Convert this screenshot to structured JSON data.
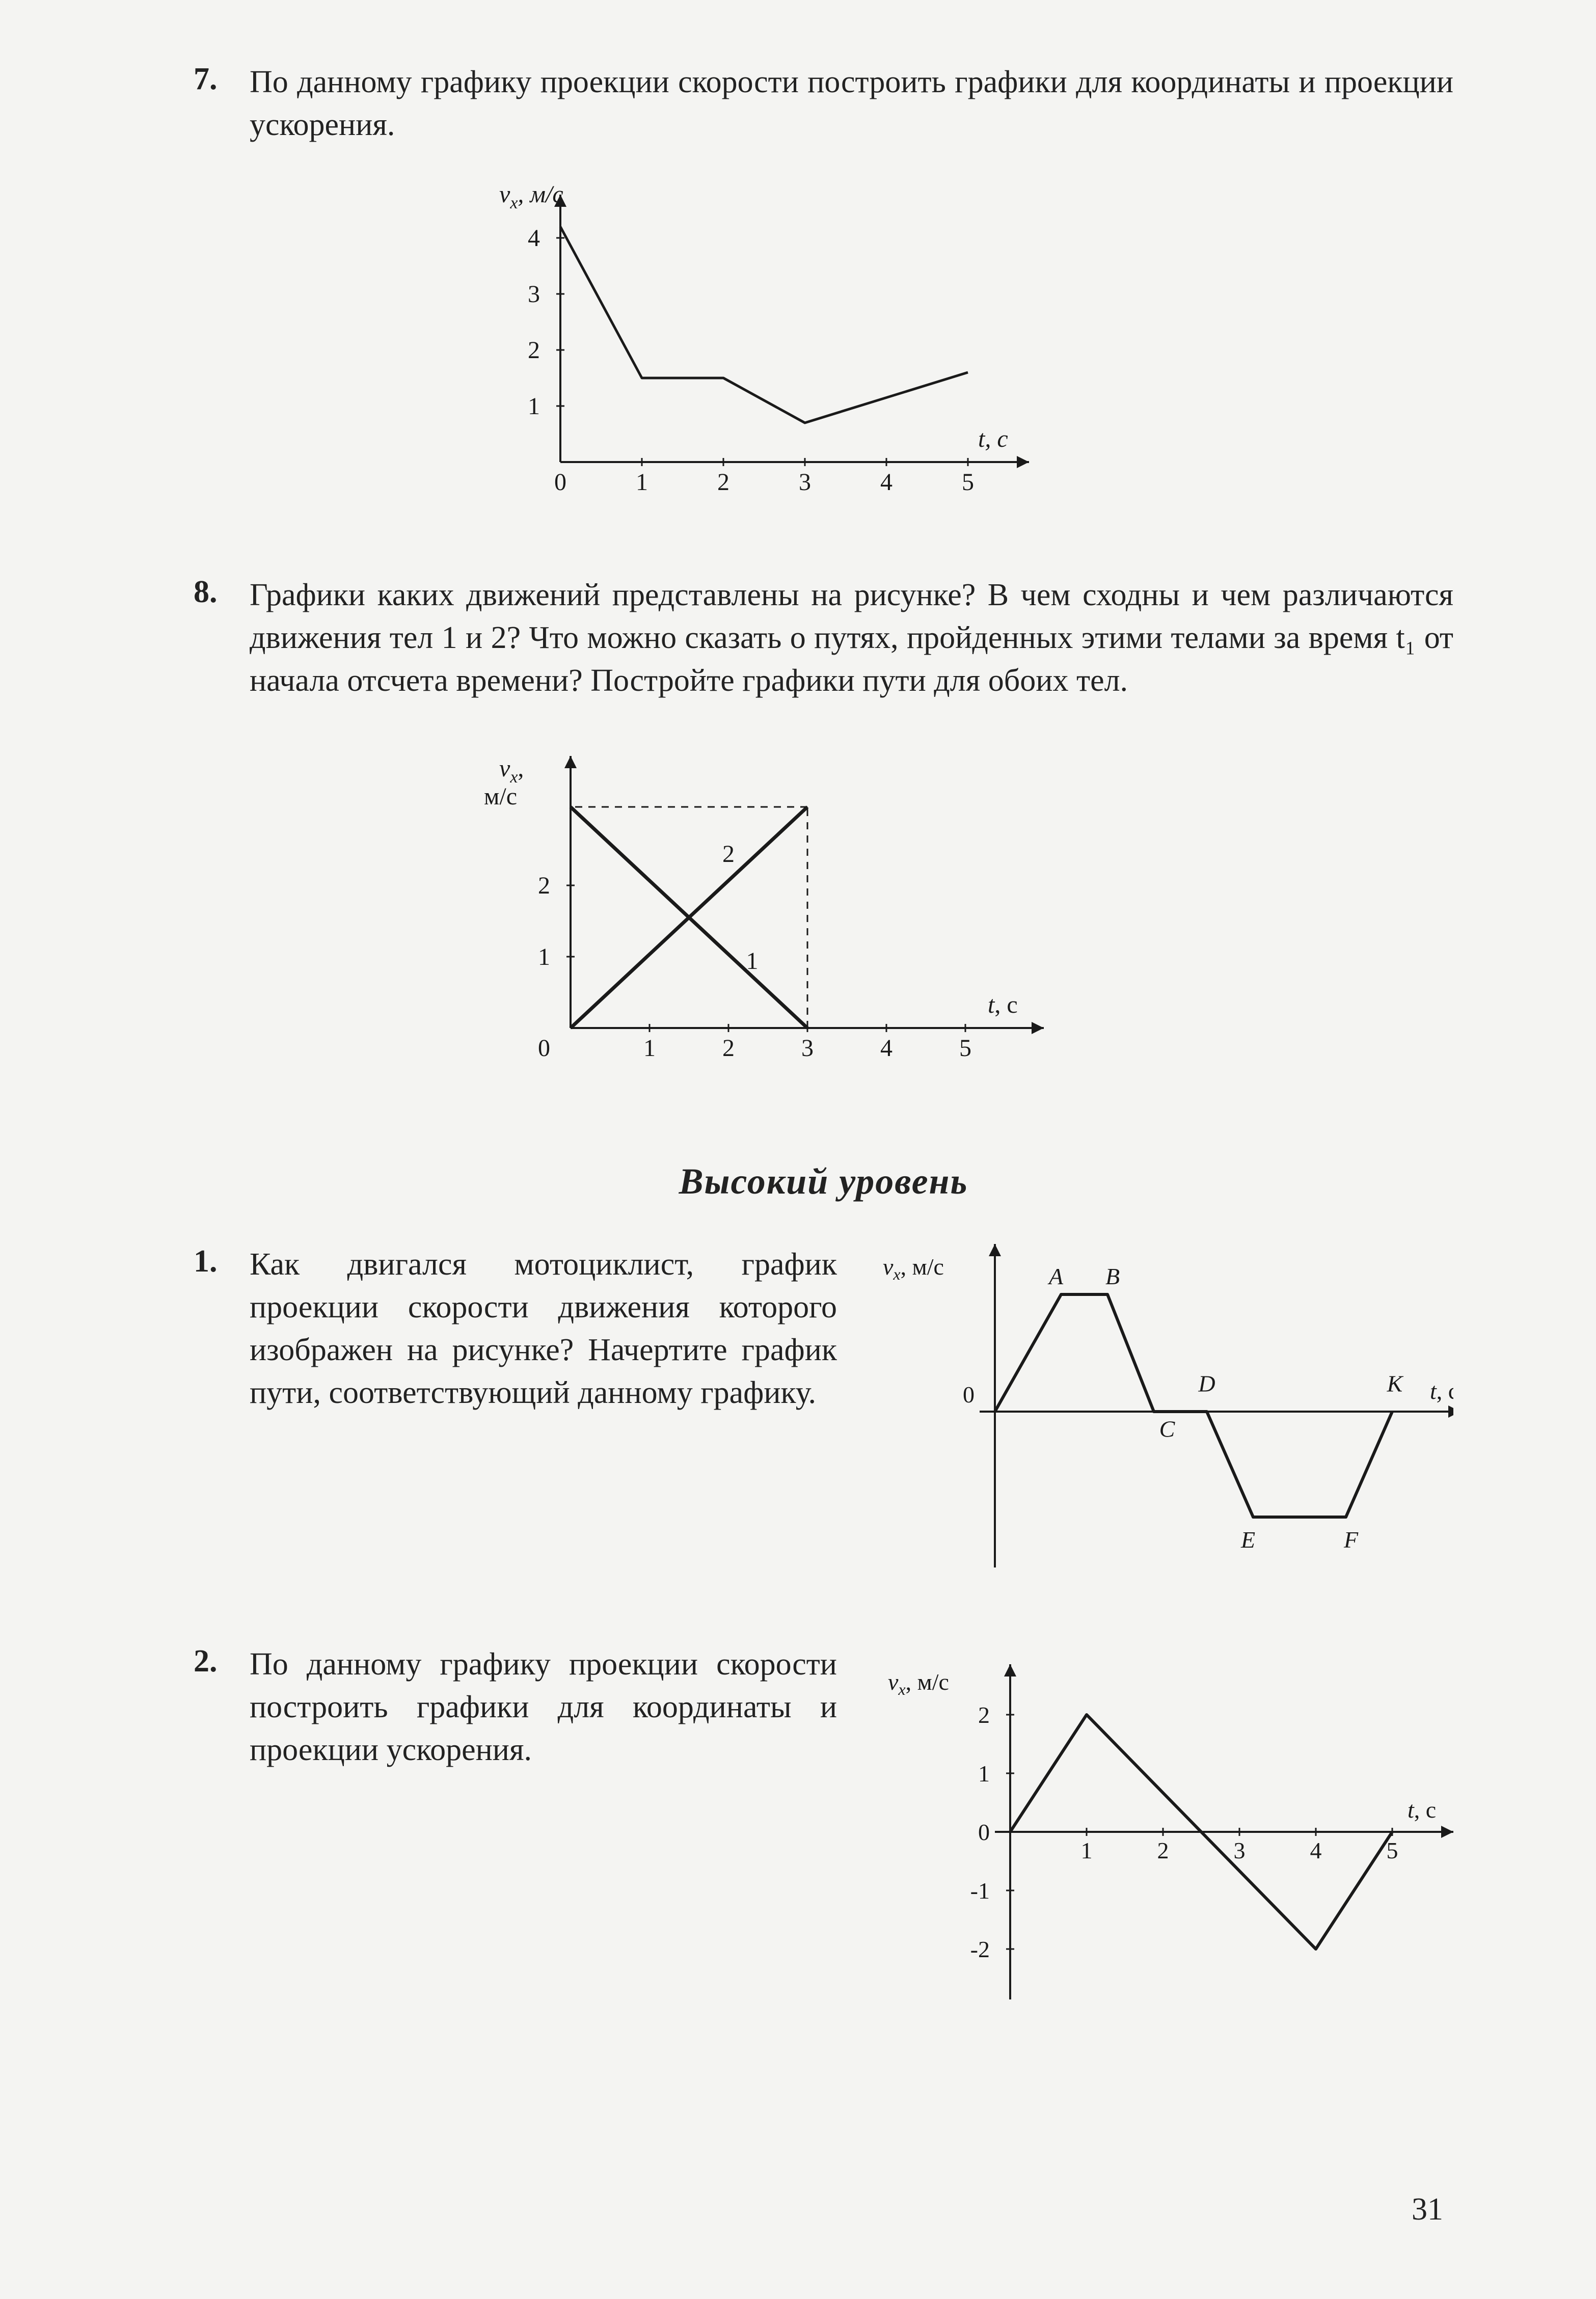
{
  "page_number": "31",
  "problems": {
    "p7": {
      "number": "7.",
      "text": "По данному графику проекции скорости построить графики для координаты и проекции ускорения."
    },
    "p8": {
      "number": "8.",
      "text": "Графики каких движений представлены на рисунке? В чем сходны и чем различаются движения тел 1 и 2? Что можно сказать о путях, пройденных этими телами за время t₁ от начала отсчета времени? Постройте графики пути для обоих тел."
    },
    "section_title": "Высокий уровень",
    "h1": {
      "number": "1.",
      "text": "Как двигался мотоциклист, график проекции скорости движения которого изображен на рисунке? Начертите график пути, соответствующий данному графику."
    },
    "h2": {
      "number": "2.",
      "text": "По данному графику проекции скорости построить графики для координаты и проекции ускорения."
    }
  },
  "charts": {
    "c7": {
      "type": "line",
      "ylabel": "vₓ, м/с",
      "xlabel": "t, с",
      "xlim": [
        0,
        5.5
      ],
      "ylim": [
        0,
        4.5
      ],
      "xticks": [
        0,
        1,
        2,
        3,
        4,
        5
      ],
      "yticks": [
        1,
        2,
        3,
        4
      ],
      "line_color": "#1a1a1a",
      "line_width": 5,
      "axis_color": "#1a1a1a",
      "tick_fontsize": 48,
      "label_fontsize": 48,
      "points": [
        [
          0,
          4.2
        ],
        [
          1,
          1.5
        ],
        [
          2,
          1.5
        ],
        [
          3,
          0.7
        ],
        [
          5,
          1.6
        ]
      ]
    },
    "c8": {
      "type": "line",
      "ylabel": "vₓ,\nм/с",
      "xlabel": "t, с",
      "xlim": [
        0,
        5.8
      ],
      "ylim": [
        0,
        3.6
      ],
      "xticks": [
        1,
        2,
        3,
        4,
        5
      ],
      "yticks": [
        1,
        2
      ],
      "line_color": "#1a1a1a",
      "line_width": 7,
      "axis_color": "#1a1a1a",
      "tick_fontsize": 48,
      "label_fontsize": 48,
      "series": {
        "one": {
          "label": "1",
          "points": [
            [
              0,
              3.1
            ],
            [
              3,
              0
            ]
          ]
        },
        "two": {
          "label": "2",
          "points": [
            [
              0,
              0
            ],
            [
              3,
              3.1
            ]
          ]
        }
      },
      "dashed": [
        [
          3,
          0
        ],
        [
          3,
          3.1
        ],
        [
          0,
          3.1
        ]
      ]
    },
    "ch1": {
      "type": "line",
      "ylabel": "vₓ, м/с",
      "xlabel": "t, с",
      "line_color": "#1a1a1a",
      "line_width": 6,
      "axis_color": "#1a1a1a",
      "label_fontsize": 46,
      "node_labels": {
        "A": [
          1.0,
          2.0
        ],
        "B": [
          1.7,
          2.0
        ],
        "C": [
          2.6,
          -0.3
        ],
        "D": [
          3.2,
          0.3
        ],
        "E": [
          3.9,
          -1.9
        ],
        "F": [
          5.3,
          -1.9
        ],
        "K": [
          6.0,
          0.3
        ]
      },
      "points": [
        [
          0,
          0
        ],
        [
          1.0,
          2.0
        ],
        [
          1.7,
          2.0
        ],
        [
          2.4,
          0
        ],
        [
          3.2,
          0
        ],
        [
          3.9,
          -1.8
        ],
        [
          5.3,
          -1.8
        ],
        [
          6.0,
          0
        ]
      ],
      "xlim": [
        0,
        6.8
      ],
      "ylim": [
        -2.4,
        2.6
      ],
      "xticks": [],
      "yticks": [],
      "origin_label": "0"
    },
    "ch2": {
      "type": "line",
      "ylabel": "vₓ, м/с",
      "xlabel": "t, с",
      "xlim": [
        0,
        5.6
      ],
      "ylim": [
        -2.6,
        2.6
      ],
      "xticks": [
        1,
        2,
        3,
        4,
        5
      ],
      "yticks": [
        -2,
        -1,
        0,
        1,
        2
      ],
      "line_color": "#1a1a1a",
      "line_width": 6,
      "axis_color": "#1a1a1a",
      "tick_fontsize": 46,
      "label_fontsize": 46,
      "points": [
        [
          0,
          0
        ],
        [
          1,
          2
        ],
        [
          4,
          -2
        ],
        [
          5,
          0
        ]
      ]
    }
  },
  "colors": {
    "bg": "#f4f4f2",
    "ink": "#1a1a1a"
  }
}
